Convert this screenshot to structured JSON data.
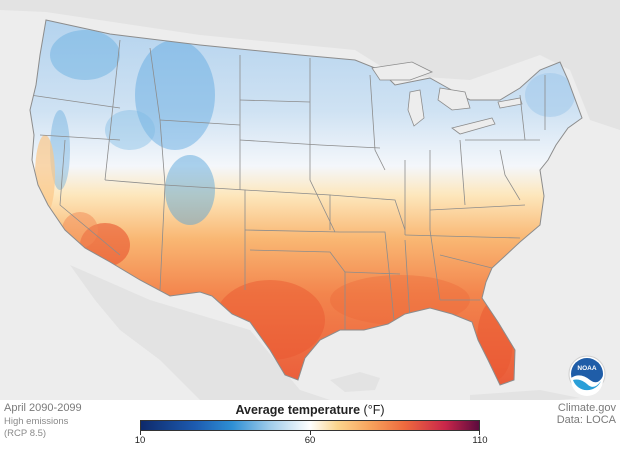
{
  "footer": {
    "period": "April 2090-2099",
    "scenario": "High emissions",
    "rcp": "(RCP 8.5)",
    "source": "Climate.gov",
    "data_credit": "Data: LOCA"
  },
  "legend": {
    "title": "Average temperature",
    "unit": "(°F)",
    "min_label": "10",
    "mid_label": "60",
    "max_label": "110",
    "min": 10,
    "mid": 60,
    "max": 110,
    "colors": [
      "#0e2a6b",
      "#1d5bb0",
      "#2e8fd4",
      "#9ecbea",
      "#ffffff",
      "#fbd58e",
      "#f7a25c",
      "#ee6a3e",
      "#c9264a",
      "#5c0b3e"
    ]
  },
  "logo": {
    "text": "NOAA"
  },
  "map": {
    "background_color": "#ededed",
    "land_color": "#e3e3e3",
    "state_border_color": "#8c8c8c"
  }
}
